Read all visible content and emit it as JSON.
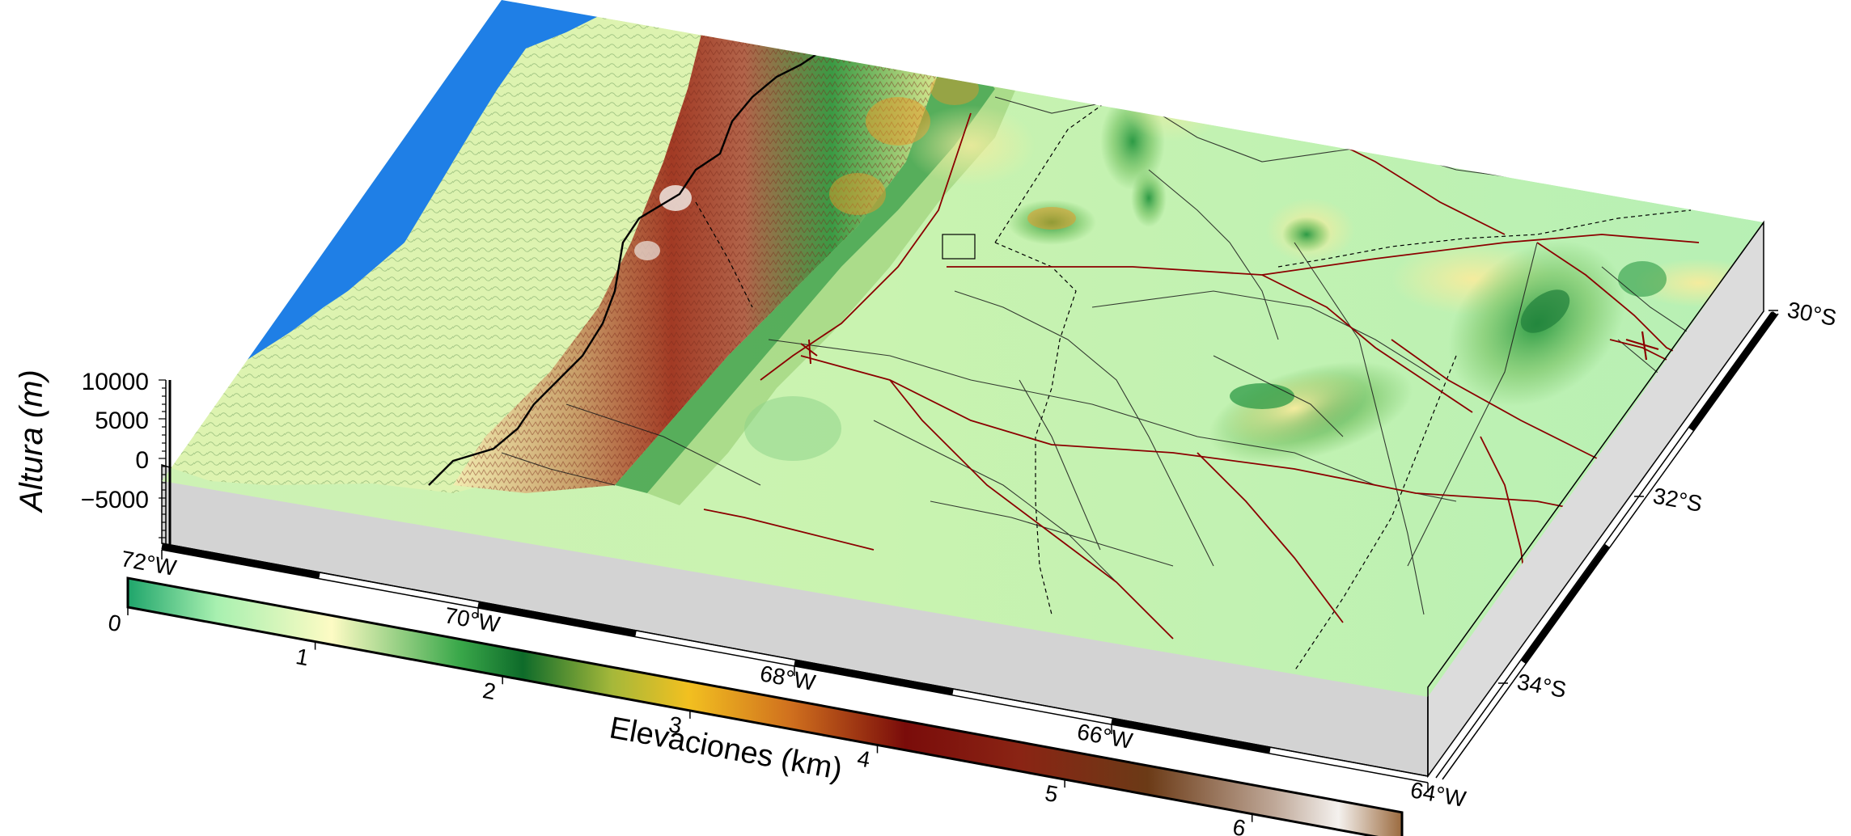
{
  "map": {
    "z_axis": {
      "label": "Altura (m)",
      "ticks": [
        "10000",
        "5000",
        "0",
        "−5000"
      ]
    },
    "lon_axis": {
      "ticks": [
        "72°W",
        "70°W",
        "68°W",
        "66°W",
        "64°W"
      ]
    },
    "lat_axis": {
      "ticks": [
        "30°S",
        "32°S",
        "34°S"
      ]
    },
    "colorbar": {
      "label": "Elevaciones (km)",
      "ticks": [
        "0",
        "1",
        "2",
        "3",
        "4",
        "5",
        "6"
      ],
      "value_range_km": [
        0,
        6.8
      ]
    },
    "colors": {
      "ocean": "#1f7fe6",
      "wall": "#d3d3d3",
      "lowland": "#b9f0a6",
      "mid_green": "#1f8f3c",
      "yellow": "#f0e8a0",
      "orange": "#e59a2a",
      "red_brown": "#8b1a14",
      "snow": "#f4f0ec",
      "roads": "#8b0000",
      "borders": "#000000"
    },
    "legend_icons": [
      "ocean-area",
      "andes-range",
      "province-borders-icon",
      "national-roads-icon"
    ]
  }
}
